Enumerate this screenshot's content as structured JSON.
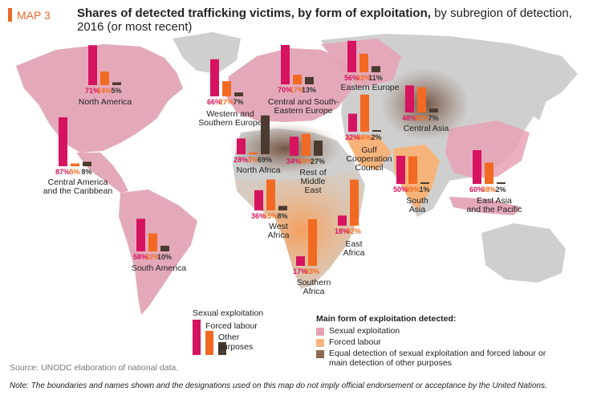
{
  "header": {
    "tag": "MAP 3",
    "title_bold": "Shares of detected trafficking victims, by form of exploitation,",
    "title_rest": " by subregion of detection, 2016 (or most recent)"
  },
  "colors": {
    "sexual": "#d6135f",
    "forced": "#f26a22",
    "other": "#4b3a2f",
    "land": "#cfcfcf",
    "zone_sexual": "#e7a2b5",
    "zone_forced": "#f7b47a",
    "zone_mixed": "#8a6a55"
  },
  "regions": [
    {
      "name": [
        "North America"
      ],
      "values": [
        "71%",
        "24%",
        "5%"
      ],
      "data": [
        71,
        24,
        5
      ]
    },
    {
      "name": [
        "Central America",
        "and the Caribbean"
      ],
      "values": [
        "87%",
        "5%",
        "8%"
      ],
      "data": [
        87,
        5,
        8
      ]
    },
    {
      "name": [
        "South America"
      ],
      "values": [
        "58%",
        "32%",
        "10%"
      ],
      "data": [
        58,
        32,
        10
      ]
    },
    {
      "name": [
        "Western and",
        "Southern Europe"
      ],
      "values": [
        "66%",
        "27%",
        "7%"
      ],
      "data": [
        66,
        27,
        7
      ]
    },
    {
      "name": [
        "Central and South-",
        "Eastern Europe"
      ],
      "values": [
        "70%",
        "17%",
        "13%"
      ],
      "data": [
        70,
        17,
        13
      ]
    },
    {
      "name": [
        "Eastern Europe"
      ],
      "values": [
        "56%",
        "33%",
        "11%"
      ],
      "data": [
        56,
        33,
        11
      ]
    },
    {
      "name": [
        "Central Asia"
      ],
      "values": [
        "48%",
        "45%",
        "7%"
      ],
      "data": [
        48,
        45,
        7
      ]
    },
    {
      "name": [
        "North Africa"
      ],
      "values": [
        "28%",
        "3%",
        "69%"
      ],
      "data": [
        28,
        3,
        69
      ]
    },
    {
      "name": [
        "Rest of",
        "Middle",
        "East"
      ],
      "values": [
        "34%",
        "39%",
        "27%"
      ],
      "data": [
        34,
        39,
        27
      ]
    },
    {
      "name": [
        "Gulf",
        "Cooperation",
        "Council"
      ],
      "values": [
        "32%",
        "66%",
        "2%"
      ],
      "data": [
        32,
        66,
        2
      ]
    },
    {
      "name": [
        "South",
        "Asia"
      ],
      "values": [
        "50%",
        "49%",
        "1%"
      ],
      "data": [
        50,
        49,
        1
      ]
    },
    {
      "name": [
        "East Asia",
        "and the Pacific"
      ],
      "values": [
        "60%",
        "38%",
        "2%"
      ],
      "data": [
        60,
        38,
        2
      ]
    },
    {
      "name": [
        "West",
        "Africa"
      ],
      "values": [
        "36%",
        "55%",
        "8%"
      ],
      "data": [
        36,
        55,
        8
      ]
    },
    {
      "name": [
        "East",
        "Africa"
      ],
      "values": [
        "18%",
        "82%",
        ""
      ],
      "data": [
        18,
        82,
        0
      ]
    },
    {
      "name": [
        "Southern",
        "Africa"
      ],
      "values": [
        "17%",
        "83%",
        ""
      ],
      "data": [
        17,
        83,
        0
      ]
    }
  ],
  "legend_bars": {
    "sexual": "Sexual exploitation",
    "forced": "Forced labour",
    "other": "Other purposes"
  },
  "legend_main": {
    "heading": "Main form of exploitation detected:",
    "sexual": "Sexual exploitation",
    "forced": "Forced labour",
    "mixed_1": "Equal detection of sexual exploitation and forced labour or",
    "mixed_2": "main detection of other purposes"
  },
  "source": "Source: UNODC elaboration of national data.",
  "note": "Note: The boundaries and names shown and the designations used on this map do not imply official endorsement or acceptance by the United Nations."
}
